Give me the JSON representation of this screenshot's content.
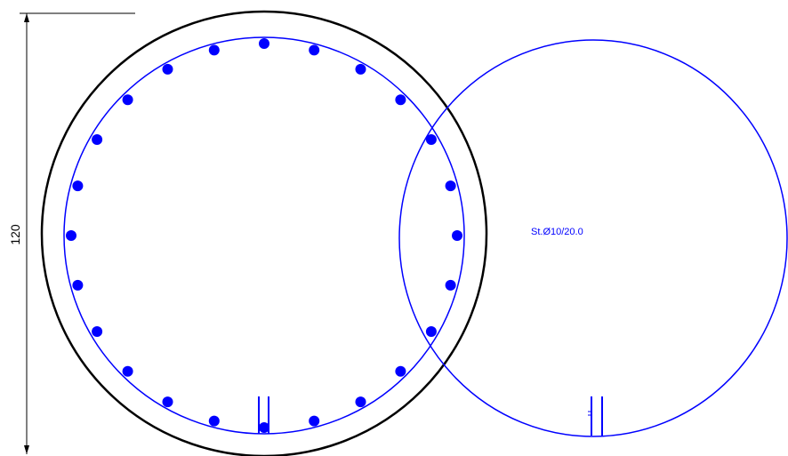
{
  "dimension": {
    "label": "120"
  },
  "stirrup": {
    "label": "St.Ø10/20.0"
  },
  "colors": {
    "concrete_outline": "#000000",
    "reinforcement": "#0000ff",
    "dimension_line": "#000000"
  },
  "section": {
    "shape": "circular column cross-section",
    "bar_count": 24,
    "has_concrete_cover_ring": true,
    "has_spiral_stirrup": true,
    "has_stirrup_detail": true
  }
}
